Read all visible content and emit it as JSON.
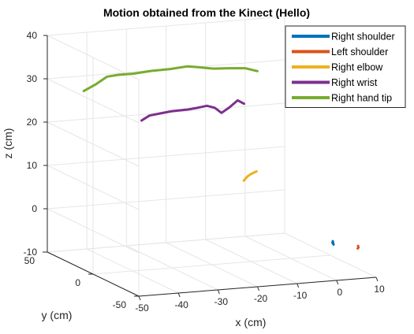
{
  "chart_data": {
    "type": "line3d",
    "title": "Motion obtained from the Kinect (Hello)",
    "xlabel": "x (cm)",
    "ylabel": "y (cm)",
    "zlabel": "z (cm)",
    "xlim": [
      -50,
      10
    ],
    "ylim": [
      -50,
      50
    ],
    "zlim": [
      -10,
      40
    ],
    "xticks": [
      "-50",
      "-40",
      "-30",
      "-20",
      "-10",
      "0",
      "10"
    ],
    "yticks": [
      "50",
      "0",
      "-50"
    ],
    "zticks": [
      "40",
      "30",
      "20",
      "10",
      "0",
      "-10"
    ],
    "grid": true,
    "legend_position": "top-right",
    "series": [
      {
        "name": "Right shoulder",
        "color": "#0072BD",
        "points": [
          [
            3.2,
            -32,
            -3.5
          ],
          [
            3.2,
            -32,
            -3.0
          ],
          [
            3.4,
            -32,
            -3.8
          ],
          [
            3.1,
            -32,
            -3.3
          ]
        ]
      },
      {
        "name": "Left shoulder",
        "color": "#D95319",
        "points": [
          [
            6.6,
            -45,
            -3.0
          ],
          [
            6.7,
            -45,
            -3.4
          ],
          [
            6.5,
            -45,
            -3.6
          ]
        ]
      },
      {
        "name": "Right elbow",
        "color": "#EDB120",
        "points": [
          [
            -14.2,
            -10,
            10.0
          ],
          [
            -13.4,
            -10,
            10.8
          ],
          [
            -12.6,
            -10,
            11.3
          ],
          [
            -11.8,
            -10,
            11.6
          ],
          [
            -11.0,
            -10,
            11.9
          ]
        ]
      },
      {
        "name": "Right wrist",
        "color": "#7E2F8E",
        "points": [
          [
            -30.8,
            30,
            21.0
          ],
          [
            -28.8,
            30,
            22.0
          ],
          [
            -26.1,
            30,
            22.3
          ],
          [
            -23.1,
            30,
            22.6
          ],
          [
            -19.1,
            30,
            22.7
          ],
          [
            -16.7,
            30,
            22.9
          ],
          [
            -14.3,
            30,
            23.2
          ],
          [
            -12.3,
            30,
            22.6
          ],
          [
            -10.6,
            30,
            21.3
          ],
          [
            -8.6,
            30,
            22.4
          ],
          [
            -6.5,
            30,
            23.9
          ],
          [
            -4.9,
            30,
            23.0
          ]
        ]
      },
      {
        "name": "Right hand tip",
        "color": "#77AC30",
        "points": [
          [
            -40.8,
            50,
            26.5
          ],
          [
            -37.8,
            50,
            27.8
          ],
          [
            -34.9,
            50,
            29.4
          ],
          [
            -32.0,
            50,
            29.6
          ],
          [
            -28.2,
            50,
            29.6
          ],
          [
            -23.7,
            50,
            29.9
          ],
          [
            -18.9,
            50,
            30.0
          ],
          [
            -14.6,
            50,
            30.3
          ],
          [
            -11.9,
            50,
            29.9
          ],
          [
            -8.0,
            50,
            29.3
          ],
          [
            -4.2,
            50,
            29.1
          ],
          [
            0.0,
            50,
            28.8
          ],
          [
            3.1,
            50,
            27.9
          ]
        ]
      }
    ]
  }
}
